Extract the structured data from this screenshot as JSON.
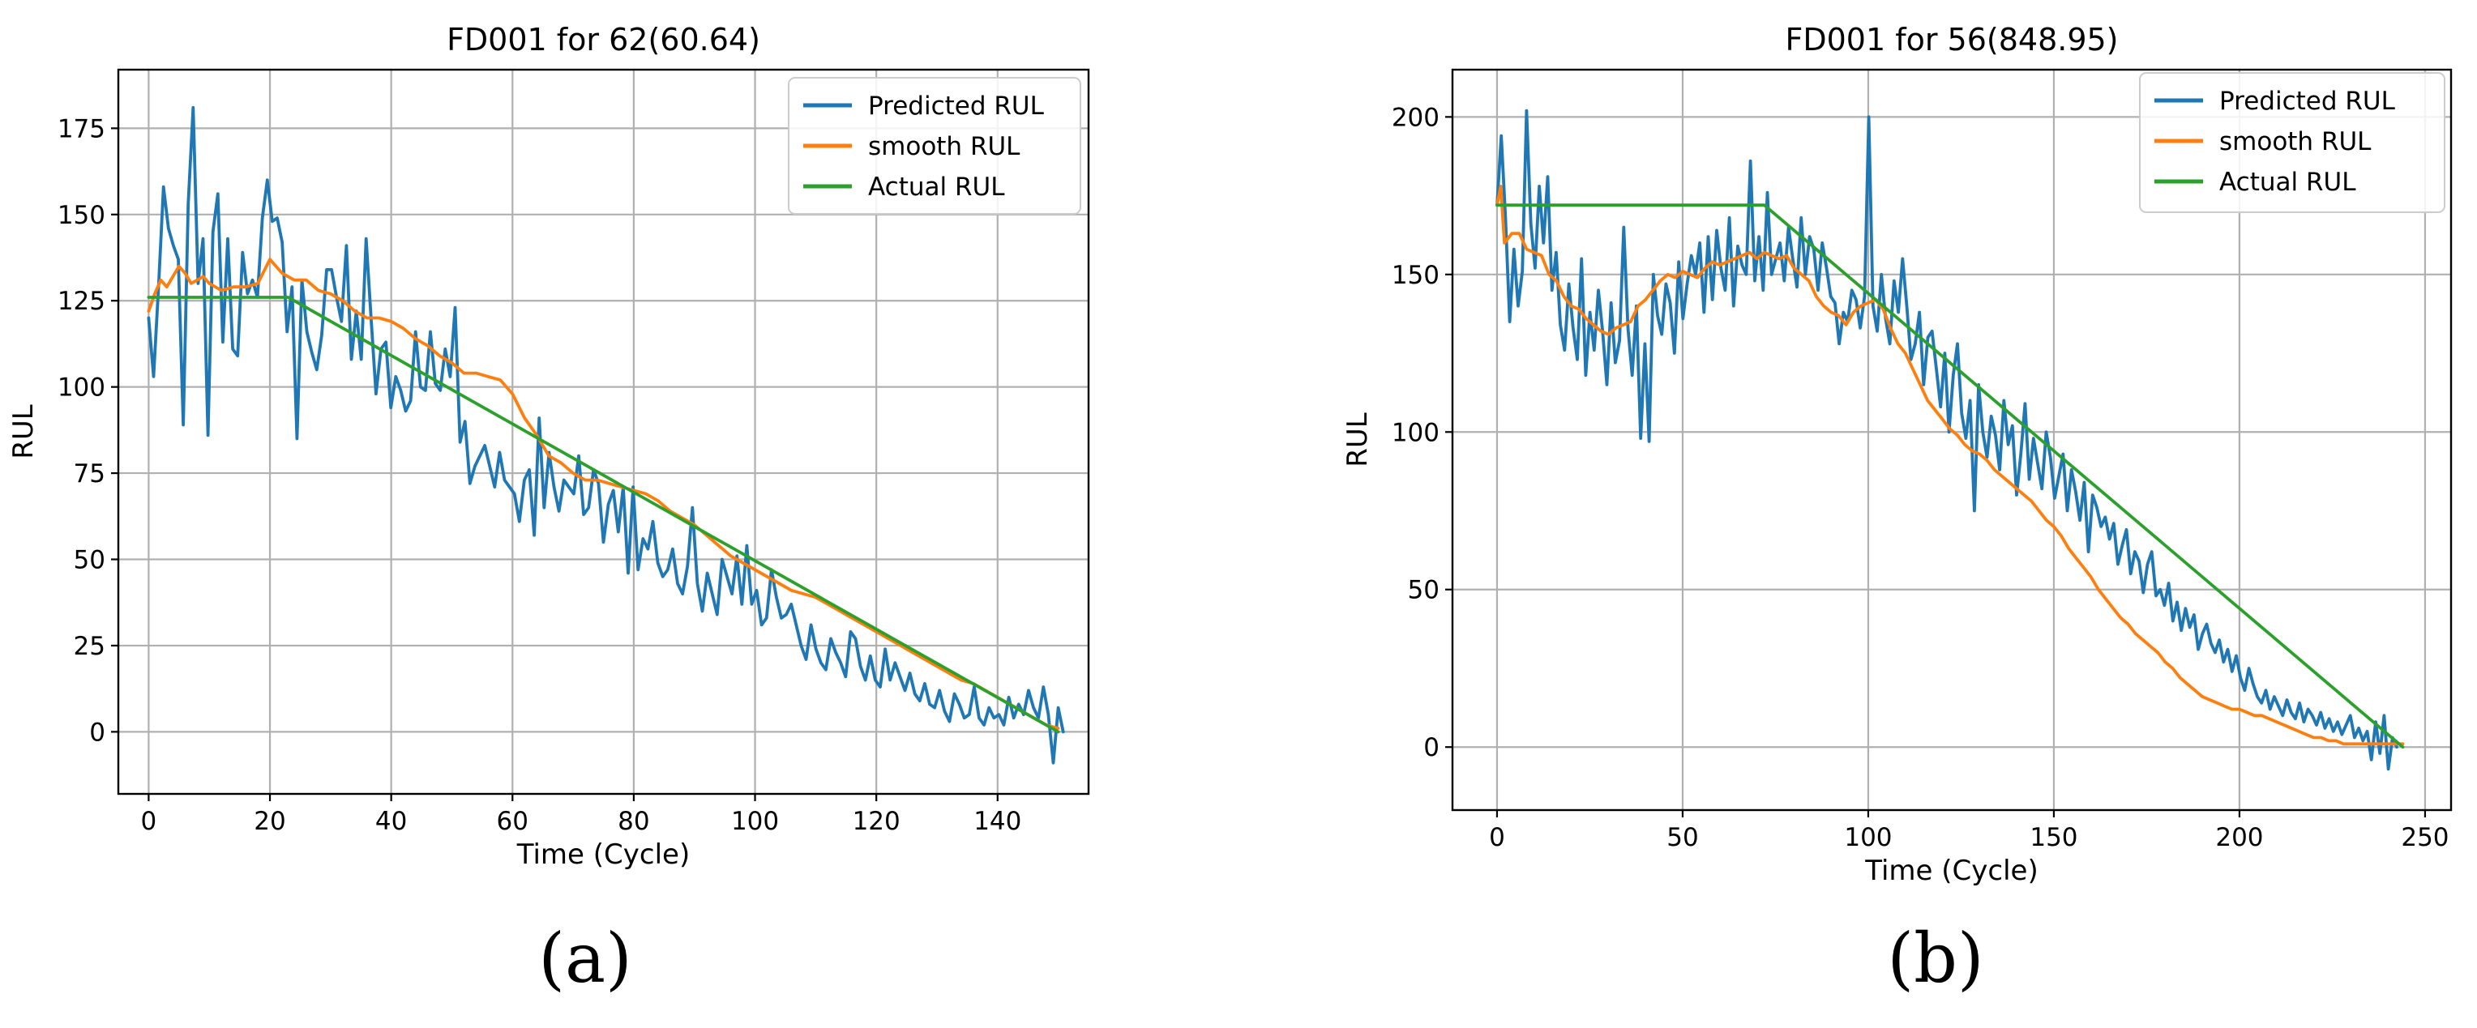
{
  "chart_data": [
    {
      "id": "a",
      "type": "line",
      "title": "FD001 for 62(60.64)",
      "xlabel": "Time (Cycle)",
      "ylabel": "RUL",
      "xlim": [
        -5,
        155
      ],
      "ylim": [
        -18,
        192
      ],
      "xticks": [
        0,
        20,
        40,
        60,
        80,
        100,
        120,
        140
      ],
      "yticks": [
        0,
        25,
        50,
        75,
        100,
        125,
        150,
        175
      ],
      "grid": true,
      "legend_position": "top-right",
      "caption": "(a)",
      "series": [
        {
          "name": "Predicted RUL",
          "color": "#1f77b4",
          "values": [
            120,
            103,
            129,
            158,
            146,
            141,
            137,
            89,
            153,
            181,
            130,
            143,
            86,
            145,
            156,
            113,
            143,
            111,
            109,
            139,
            127,
            131,
            126,
            149,
            160,
            148,
            149,
            142,
            116,
            129,
            85,
            131,
            116,
            110,
            105,
            115,
            134,
            134,
            126,
            119,
            141,
            108,
            122,
            108,
            143,
            120,
            98,
            111,
            113,
            94,
            103,
            99,
            93,
            96,
            116,
            100,
            99,
            116,
            101,
            99,
            111,
            103,
            123,
            84,
            90,
            72,
            77,
            80,
            83,
            77,
            71,
            81,
            73,
            71,
            69,
            61,
            73,
            76,
            57,
            91,
            65,
            81,
            71,
            64,
            73,
            71,
            69,
            80,
            63,
            65,
            76,
            72,
            55,
            66,
            70,
            58,
            71,
            46,
            71,
            47,
            56,
            53,
            61,
            49,
            45,
            47,
            53,
            43,
            40,
            48,
            65,
            43,
            35,
            46,
            40,
            34,
            50,
            45,
            40,
            51,
            37,
            54,
            37,
            41,
            31,
            33,
            47,
            39,
            33,
            34,
            37,
            31,
            25,
            21,
            31,
            24,
            20,
            18,
            27,
            23,
            20,
            16,
            29,
            27,
            19,
            15,
            22,
            15,
            13,
            24,
            15,
            20,
            16,
            12,
            17,
            11,
            9,
            14,
            8,
            7,
            12,
            6,
            3,
            11,
            8,
            4,
            5,
            13,
            4,
            2,
            7,
            4,
            5,
            2,
            10,
            4,
            8,
            5,
            12,
            7,
            4,
            13,
            5,
            -9,
            7,
            0
          ],
          "x_step": 0.8152
        },
        {
          "name": "smooth RUL",
          "color": "#ff7f0e",
          "x": [
            0,
            1,
            2,
            3,
            4,
            5,
            6,
            7,
            8,
            9,
            10,
            12,
            14,
            16,
            18,
            20,
            22,
            24,
            26,
            28,
            30,
            32,
            34,
            36,
            38,
            40,
            42,
            44,
            46,
            48,
            50,
            52,
            54,
            56,
            58,
            60,
            62,
            64,
            66,
            68,
            70,
            72,
            74,
            76,
            78,
            80,
            82,
            84,
            86,
            88,
            90,
            92,
            94,
            96,
            98,
            100,
            102,
            104,
            106,
            108,
            110,
            112,
            114,
            116,
            118,
            120,
            122,
            124,
            126,
            128,
            130,
            132,
            134,
            136,
            138,
            140,
            142,
            144,
            146,
            148,
            150
          ],
          "values": [
            122,
            127,
            131,
            129,
            132,
            135,
            133,
            130,
            131,
            132,
            130,
            128,
            129,
            129,
            130,
            137,
            133,
            131,
            131,
            128,
            127,
            125,
            122,
            120,
            120,
            119,
            117,
            114,
            112,
            109,
            107,
            104,
            104,
            103,
            102,
            98,
            91,
            86,
            80,
            78,
            75,
            73,
            73,
            72,
            71,
            70,
            69,
            67,
            64,
            62,
            60,
            57,
            54,
            51,
            49,
            47,
            45,
            43,
            41,
            40,
            39,
            37,
            35,
            33,
            31,
            29,
            27,
            25,
            23,
            21,
            19,
            17,
            15,
            14,
            12,
            10,
            8,
            6,
            4,
            2,
            1
          ]
        },
        {
          "name": "Actual RUL",
          "color": "#2ca02c",
          "x": [
            0,
            23,
            150
          ],
          "values": [
            126,
            126,
            0
          ]
        }
      ]
    },
    {
      "id": "b",
      "type": "line",
      "title": "FD001 for 56(848.95)",
      "xlabel": "Time (Cycle)",
      "ylabel": "RUL",
      "xlim": [
        -12,
        257
      ],
      "ylim": [
        -20,
        215
      ],
      "xticks": [
        0,
        50,
        100,
        150,
        200,
        250
      ],
      "yticks": [
        0,
        50,
        100,
        150,
        200
      ],
      "grid": true,
      "legend_position": "top-right",
      "caption": "(b)",
      "series": [
        {
          "name": "Predicted RUL",
          "color": "#1f77b4",
          "values": [
            172,
            194,
            168,
            135,
            158,
            140,
            151,
            202,
            166,
            152,
            178,
            160,
            181,
            145,
            157,
            134,
            126,
            147,
            133,
            123,
            155,
            118,
            138,
            126,
            145,
            132,
            115,
            141,
            122,
            129,
            165,
            133,
            118,
            140,
            98,
            128,
            97,
            150,
            137,
            131,
            147,
            141,
            125,
            154,
            136,
            147,
            156,
            150,
            160,
            138,
            162,
            142,
            164,
            152,
            145,
            168,
            140,
            159,
            153,
            150,
            186,
            148,
            162,
            145,
            176,
            150,
            155,
            160,
            148,
            165,
            155,
            146,
            168,
            150,
            162,
            158,
            145,
            160,
            152,
            143,
            141,
            128,
            138,
            135,
            145,
            142,
            133,
            143,
            200,
            140,
            132,
            150,
            136,
            128,
            148,
            138,
            155,
            140,
            123,
            128,
            138,
            115,
            130,
            132,
            120,
            108,
            125,
            100,
            118,
            128,
            106,
            98,
            110,
            75,
            115,
            100,
            92,
            105,
            99,
            88,
            110,
            96,
            102,
            80,
            93,
            109,
            85,
            98,
            90,
            82,
            100,
            92,
            79,
            86,
            93,
            75,
            88,
            81,
            72,
            84,
            62,
            80,
            76,
            70,
            73,
            66,
            71,
            58,
            64,
            69,
            55,
            62,
            59,
            49,
            58,
            62,
            48,
            50,
            45,
            52,
            40,
            46,
            37,
            44,
            38,
            42,
            31,
            36,
            39,
            33,
            30,
            34,
            27,
            31,
            24,
            29,
            22,
            18,
            25,
            20,
            16,
            14,
            18,
            12,
            16,
            13,
            10,
            15,
            11,
            9,
            14,
            8,
            12,
            10,
            7,
            11,
            6,
            9,
            5,
            8,
            4,
            7,
            10,
            3,
            6,
            2,
            5,
            -4,
            8,
            -2,
            10,
            -7,
            3,
            0
          ],
          "x_step": 1.1379
        },
        {
          "name": "smooth RUL",
          "color": "#ff7f0e",
          "x": [
            0,
            1,
            2,
            4,
            6,
            8,
            10,
            12,
            14,
            16,
            18,
            20,
            22,
            24,
            26,
            28,
            30,
            32,
            34,
            36,
            38,
            40,
            42,
            44,
            46,
            48,
            50,
            52,
            54,
            56,
            58,
            60,
            62,
            64,
            66,
            68,
            70,
            72,
            74,
            76,
            78,
            80,
            82,
            84,
            86,
            88,
            90,
            92,
            94,
            96,
            98,
            100,
            102,
            104,
            106,
            108,
            110,
            112,
            114,
            116,
            118,
            120,
            122,
            124,
            126,
            128,
            130,
            132,
            134,
            136,
            138,
            140,
            142,
            144,
            146,
            148,
            150,
            152,
            154,
            156,
            158,
            160,
            162,
            164,
            166,
            168,
            170,
            172,
            174,
            176,
            178,
            180,
            182,
            184,
            186,
            188,
            190,
            192,
            194,
            196,
            198,
            200,
            202,
            204,
            206,
            208,
            210,
            212,
            214,
            216,
            218,
            220,
            222,
            224,
            226,
            228,
            230,
            232,
            234,
            236,
            238,
            240,
            242,
            244
          ],
          "values": [
            172,
            178,
            160,
            163,
            163,
            158,
            157,
            156,
            150,
            148,
            143,
            140,
            139,
            136,
            134,
            132,
            131,
            133,
            134,
            135,
            140,
            142,
            145,
            148,
            150,
            149,
            151,
            150,
            149,
            152,
            154,
            153,
            154,
            155,
            156,
            157,
            155,
            157,
            156,
            155,
            156,
            152,
            150,
            148,
            143,
            140,
            138,
            137,
            134,
            138,
            140,
            141,
            142,
            139,
            133,
            128,
            125,
            120,
            115,
            110,
            107,
            104,
            101,
            99,
            96,
            94,
            93,
            91,
            88,
            86,
            84,
            82,
            80,
            78,
            75,
            72,
            70,
            67,
            63,
            60,
            57,
            54,
            50,
            47,
            44,
            41,
            39,
            36,
            34,
            32,
            30,
            27,
            25,
            22,
            20,
            18,
            16,
            15,
            14,
            13,
            12,
            12,
            11,
            10,
            10,
            9,
            8,
            7,
            6,
            5,
            4,
            3,
            3,
            2,
            2,
            1,
            1,
            1,
            1,
            1,
            1,
            1,
            1,
            1
          ]
        },
        {
          "name": "Actual RUL",
          "color": "#2ca02c",
          "x": [
            0,
            72,
            244
          ],
          "values": [
            172,
            172,
            0
          ]
        }
      ]
    }
  ]
}
